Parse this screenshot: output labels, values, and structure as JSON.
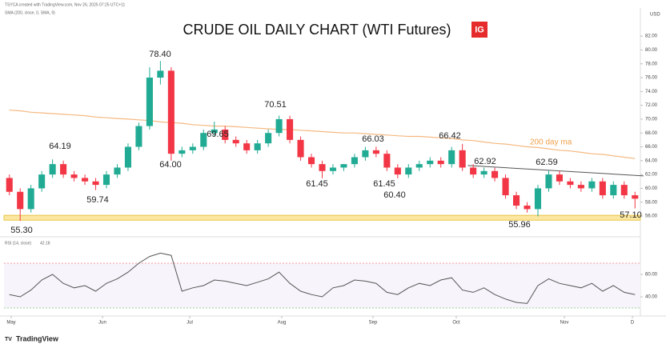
{
  "chart_data": {
    "type": "candlestick",
    "title": "CRUDE OIL DAILY CHART (WTI Futures)",
    "logo": "IG",
    "header": "TSYCA created with TradingView.com, Nov 26, 2025 07:25 UTC+11",
    "ma_legend": "SMA (200, close, 0, SMA, 9)",
    "currency": "USD",
    "footer": "TradingView",
    "up_color": "#22ab94",
    "down_color": "#f23645",
    "open": [
      61.5,
      59.5,
      57,
      60,
      62,
      63.5,
      62,
      61.5,
      61,
      60.5,
      62,
      63,
      66,
      69,
      76,
      77,
      65,
      65.5,
      66,
      68,
      68.5,
      67,
      66.5,
      65.5,
      66.5,
      68,
      70,
      67,
      64.5,
      63.5,
      62.5,
      63,
      63.5,
      64.5,
      65.5,
      65,
      63,
      62,
      63,
      63.5,
      64,
      63.5,
      65.5,
      63,
      62,
      62.5,
      61.5,
      59,
      57.5,
      57,
      60,
      62,
      61,
      60.5,
      60,
      61,
      59,
      60.5,
      59
    ],
    "high": [
      62,
      60,
      60.5,
      62.5,
      64.19,
      64,
      62.5,
      62,
      61.5,
      62.5,
      63.5,
      66.5,
      69.5,
      77.5,
      78.4,
      77.5,
      66,
      66.5,
      68.5,
      69.65,
      69,
      67.5,
      67,
      67,
      68.5,
      70.51,
      70.5,
      67.5,
      65,
      64,
      63.5,
      63.5,
      65,
      66,
      66.03,
      65.5,
      63.5,
      63.5,
      64,
      64.5,
      64.5,
      66,
      66.42,
      63.5,
      63,
      63,
      62,
      59.5,
      58,
      60.5,
      62.59,
      62.5,
      61.5,
      61,
      61.5,
      61.5,
      61,
      61,
      59.5
    ],
    "low": [
      59,
      55.3,
      56.5,
      59.5,
      61.5,
      61.5,
      61,
      60.5,
      59.74,
      60,
      61.5,
      62.5,
      65.5,
      68.5,
      75,
      64,
      64.5,
      65,
      65.5,
      67.5,
      66.5,
      66,
      65,
      65,
      66,
      67.5,
      66.5,
      64,
      63,
      61.45,
      62,
      62.5,
      63,
      64,
      64.5,
      62.5,
      61.45,
      61.5,
      62.5,
      63,
      63,
      63,
      62.5,
      61.5,
      61.5,
      61,
      58.5,
      57,
      56.5,
      55.96,
      59.5,
      60.5,
      60,
      59.5,
      59.5,
      58.5,
      58.5,
      58.5,
      57.1
    ],
    "close": [
      59.5,
      57,
      60,
      62,
      63.5,
      62,
      61.5,
      61,
      60.5,
      62,
      63,
      66,
      69,
      76,
      77,
      65,
      65.5,
      66,
      68,
      68.5,
      67,
      66.5,
      65.5,
      66.5,
      68,
      70,
      67,
      64.5,
      63.5,
      62.5,
      63,
      63.5,
      64.5,
      65.5,
      65,
      63,
      62,
      63,
      63.5,
      64,
      63.5,
      65.5,
      63,
      62,
      62.5,
      61.5,
      59,
      57.5,
      57,
      60,
      62,
      61,
      60.5,
      60,
      61,
      59,
      60.5,
      59,
      58.5
    ],
    "ma": {
      "name": "200 day ma",
      "color": "#f5b880",
      "values": [
        71.3,
        71.2,
        71.0,
        70.9,
        70.8,
        70.7,
        70.6,
        70.5,
        70.3,
        70.2,
        70.1,
        70.0,
        69.9,
        69.8,
        69.6,
        69.5,
        69.4,
        69.2,
        69.1,
        69.0,
        69.0,
        68.9,
        68.8,
        68.7,
        68.6,
        68.5,
        68.5,
        68.4,
        68.3,
        68.2,
        68.1,
        68.0,
        68.0,
        67.9,
        67.8,
        67.7,
        67.6,
        67.5,
        67.5,
        67.4,
        67.3,
        67.2,
        67.0,
        66.9,
        66.7,
        66.5,
        66.4,
        66.2,
        66.0,
        65.9,
        65.7,
        65.5,
        65.4,
        65.2,
        65.0,
        64.9,
        64.7,
        64.5,
        64.3
      ]
    },
    "trendline": {
      "x": [
        42.5,
        58.8
      ],
      "y": [
        63.3,
        61.8
      ]
    },
    "support": [
      55.4,
      56.1
    ],
    "annotations": [
      {
        "value": 78.4,
        "label": "78.40"
      },
      {
        "value": 64.19,
        "label": "64.19"
      },
      {
        "value": 59.74,
        "label": "59.74"
      },
      {
        "value": 55.3,
        "label": "55.30"
      },
      {
        "value": 64.0,
        "label": "64.00"
      },
      {
        "value": 69.65,
        "label": "69.65"
      },
      {
        "value": 70.51,
        "label": "70.51"
      },
      {
        "value": 66.03,
        "label": "66.03"
      },
      {
        "value": 61.45,
        "label": "61.45"
      },
      {
        "value": 61.45,
        "label": "61.45"
      },
      {
        "value": 60.4,
        "label": "60.40"
      },
      {
        "value": 66.42,
        "label": "66.42"
      },
      {
        "value": 62.92,
        "label": "62.92"
      },
      {
        "value": 62.59,
        "label": "62.59"
      },
      {
        "value": 55.96,
        "label": "55.96"
      },
      {
        "value": 57.1,
        "label": "57.10"
      }
    ],
    "xlim": [
      -0.5,
      58.5
    ],
    "xticks": [
      {
        "value": 0.17,
        "label": "May"
      },
      {
        "value": 8.63,
        "label": "Jun"
      },
      {
        "value": 16.72,
        "label": "Jul"
      },
      {
        "value": 25.25,
        "label": "Aug"
      },
      {
        "value": 33.71,
        "label": "Sep"
      },
      {
        "value": 41.43,
        "label": "Oct"
      },
      {
        "value": 51.45,
        "label": "Nov"
      },
      {
        "value": 57.76,
        "label": "D"
      }
    ],
    "ylim": [
      53.69,
      85.83
    ],
    "yticks": [
      {
        "value": 56,
        "label": "56.00"
      },
      {
        "value": 58,
        "label": "58.00"
      },
      {
        "value": 60,
        "label": "60.00"
      },
      {
        "value": 62,
        "label": "62.00"
      },
      {
        "value": 64,
        "label": "64.00"
      },
      {
        "value": 66,
        "label": "66.00"
      },
      {
        "value": 68,
        "label": "68.00"
      },
      {
        "value": 70,
        "label": "70.00"
      },
      {
        "value": 72,
        "label": "72.00"
      },
      {
        "value": 74,
        "label": "74.00"
      },
      {
        "value": 76,
        "label": "76.00"
      },
      {
        "value": 78,
        "label": "78.00"
      },
      {
        "value": 80,
        "label": "80.00"
      },
      {
        "value": 82,
        "label": "82.00"
      }
    ],
    "rsi": {
      "name": "RSI (14, close)",
      "last": "42.18",
      "color": "#555555",
      "values": [
        42,
        40,
        46,
        55,
        60,
        52,
        48,
        50,
        45,
        52,
        56,
        62,
        70,
        76,
        79,
        77,
        45,
        48,
        50,
        55,
        54,
        52,
        50,
        53,
        56,
        62,
        52,
        45,
        42,
        40,
        48,
        50,
        55,
        54,
        52,
        44,
        42,
        48,
        52,
        50,
        55,
        57,
        46,
        44,
        48,
        42,
        38,
        35,
        34,
        50,
        56,
        52,
        50,
        48,
        52,
        45,
        50,
        44,
        42
      ],
      "ylim": [
        25,
        90.7
      ],
      "yticks": [
        {
          "value": 40,
          "label": "40.00"
        },
        {
          "value": 60,
          "label": "60.00"
        }
      ],
      "levels": [
        30,
        70
      ]
    }
  }
}
